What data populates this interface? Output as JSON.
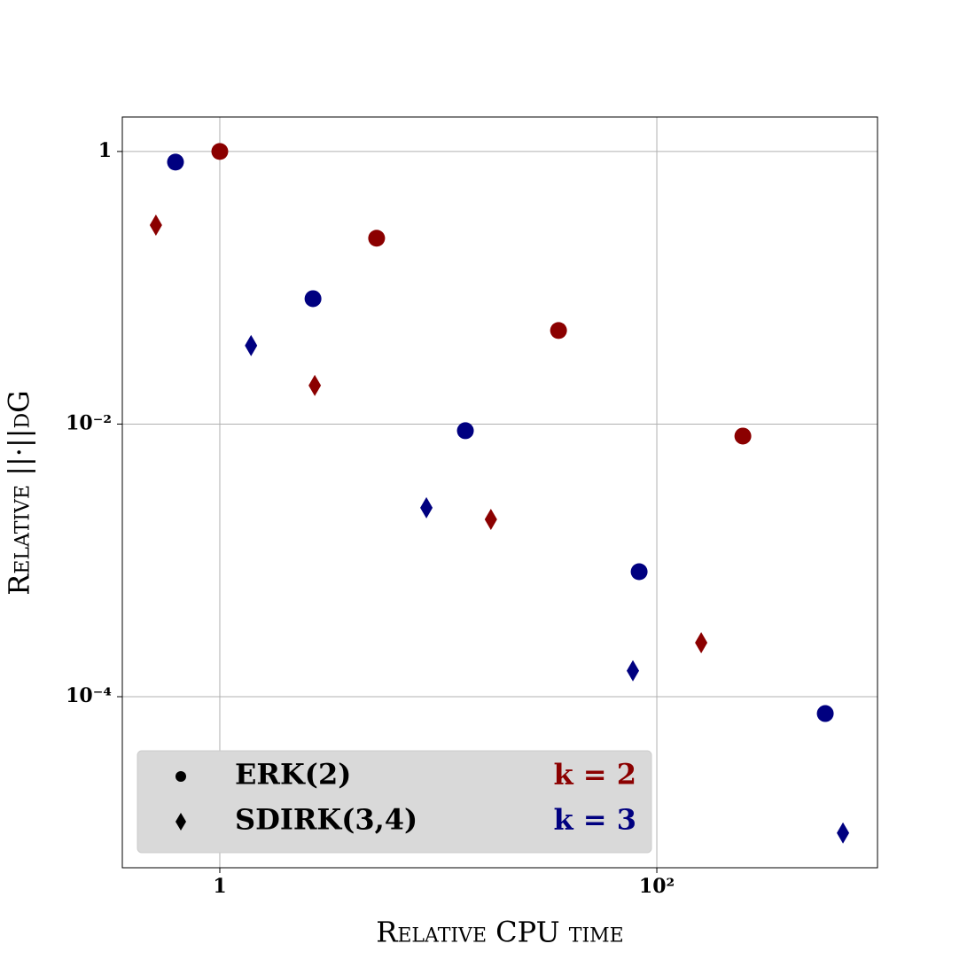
{
  "chart_data": {
    "type": "scatter",
    "xlabel": "Relative CPU time",
    "ylabel": "Relative ||·||dG",
    "xscale": "log",
    "yscale": "log",
    "xlim": [
      0.358,
      1023
    ],
    "ylim": [
      5.56e-06,
      1.79
    ],
    "xticks": [
      1,
      {
        "value": 100,
        "label": "10²"
      }
    ],
    "yticks": [
      1,
      {
        "value": 0.01,
        "label": "10⁻²"
      },
      {
        "value": 0.0001,
        "label": "10⁻⁴"
      }
    ],
    "grid": true,
    "legend": {
      "corner": "lower left",
      "markers": [
        {
          "label": "ERK(2)",
          "marker": "circle"
        },
        {
          "label": "SDIRK(3,4)",
          "marker": "diamond"
        }
      ],
      "colors": [
        {
          "label": "k = 2",
          "color": "#8b0000"
        },
        {
          "label": "k = 3",
          "color": "#000080"
        }
      ]
    },
    "series": [
      {
        "marker": "circle",
        "color": "#8b0000",
        "x": [
          1,
          5.22,
          35.5,
          247.6
        ],
        "values": [
          1,
          0.231,
          0.0486,
          0.00817
        ]
      },
      {
        "marker": "circle",
        "color": "#000080",
        "x": [
          0.627,
          2.67,
          13.3,
          83,
          590
        ],
        "values": [
          0.836,
          0.0832,
          0.00894,
          0.000826,
          7.52e-05
        ]
      },
      {
        "marker": "diamond",
        "color": "#8b0000",
        "x": [
          0.51,
          2.72,
          17.4,
          159.6
        ],
        "values": [
          0.288,
          0.0192,
          0.002,
          0.000249
        ]
      },
      {
        "marker": "diamond",
        "color": "#000080",
        "x": [
          1.39,
          8.82,
          77.7,
          711
        ],
        "values": [
          0.0377,
          0.00243,
          0.000155,
          1e-05
        ]
      }
    ]
  }
}
